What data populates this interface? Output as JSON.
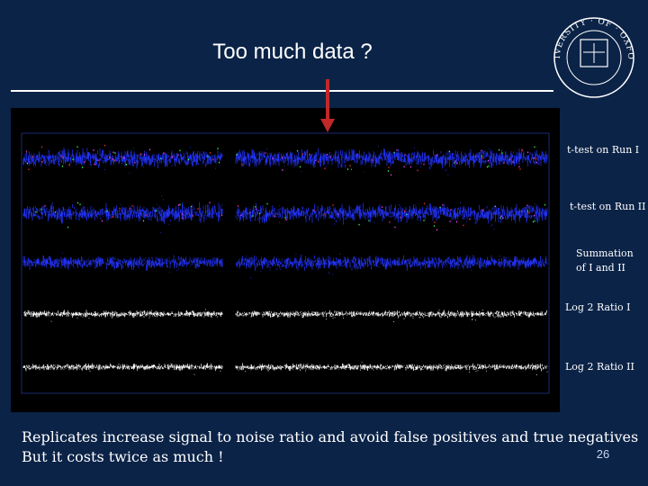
{
  "slide": {
    "title": "Too much data ?",
    "logo_text": "UNIVERSITY · OF · OXFORD",
    "tracks": [
      {
        "label": [
          "t-test on Run I"
        ]
      },
      {
        "label": [
          "t-test on Run II"
        ]
      },
      {
        "label": [
          "Summation",
          "of I and II"
        ]
      },
      {
        "label": [
          "Log 2 Ratio I"
        ]
      },
      {
        "label": [
          "Log 2 Ratio II"
        ]
      }
    ],
    "caption": [
      "Replicates increase signal to noise ratio and avoid false positives and true negatives",
      "But it costs twice as much !"
    ],
    "page_number": "26"
  }
}
